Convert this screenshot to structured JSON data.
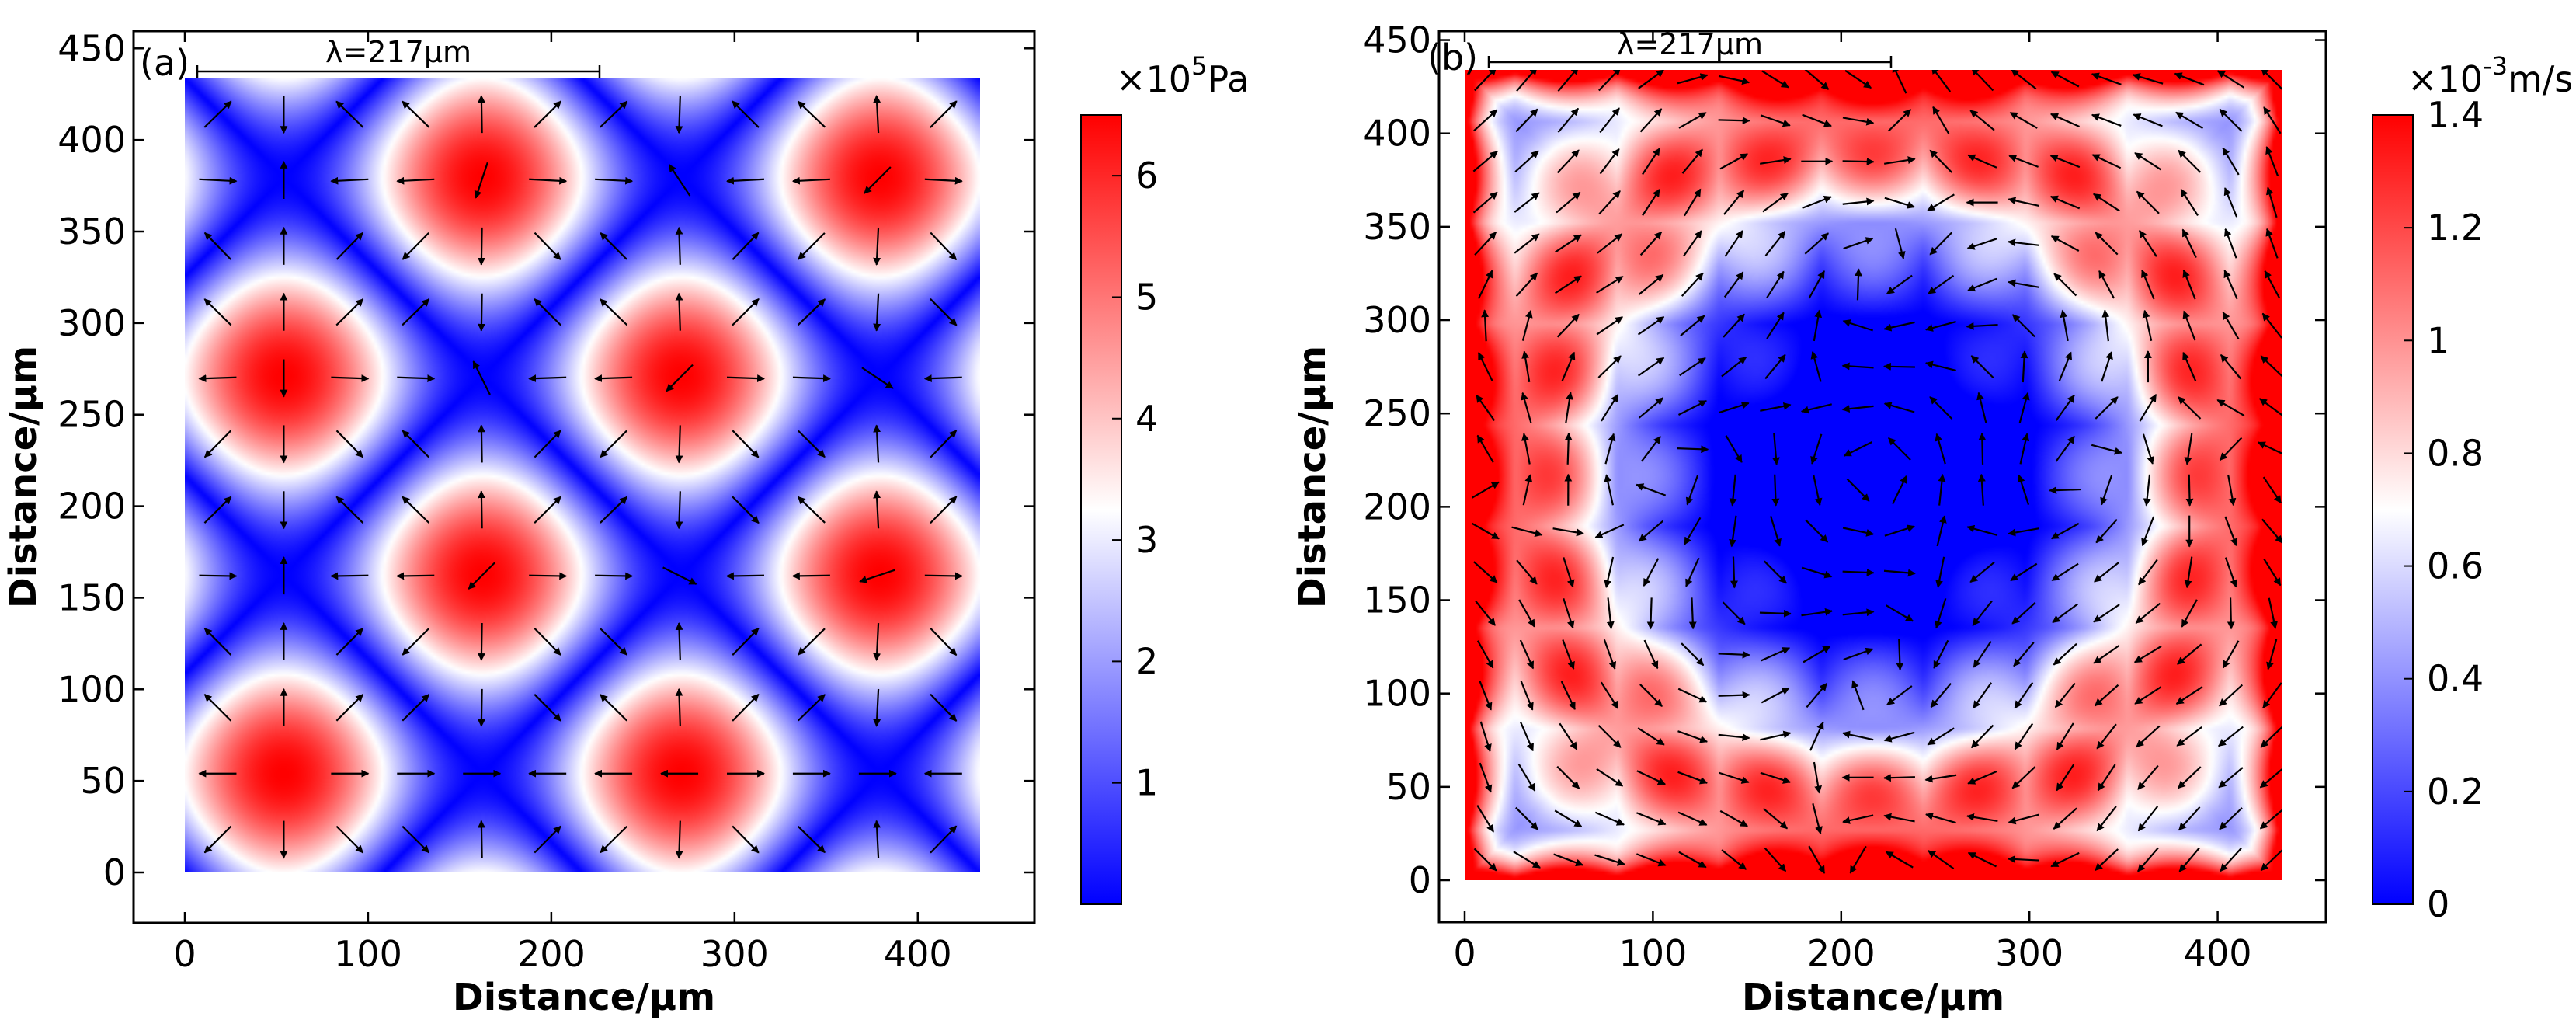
{
  "chart_data": [
    {
      "type": "heatmap",
      "panel_label": "(a)",
      "quantity": "acoustic pressure amplitude with radiation-force arrows",
      "scalebar_label": "λ=217μm",
      "xlabel": "Distance/μm",
      "ylabel": "Distance/μm",
      "xlim": [
        -30,
        465
      ],
      "ylim": [
        -25,
        462
      ],
      "xticks": [
        0,
        100,
        200,
        300,
        400
      ],
      "yticks": [
        0,
        50,
        100,
        150,
        200,
        250,
        300,
        350,
        400,
        450
      ],
      "domain": [
        0,
        434
      ],
      "pressure_peaks": [
        [
          54,
          54
        ],
        [
          271,
          54
        ],
        [
          163,
          163
        ],
        [
          380,
          163
        ],
        [
          54,
          271
        ],
        [
          271,
          271
        ],
        [
          163,
          380
        ],
        [
          380,
          380
        ]
      ],
      "colorbar": {
        "exponent_label": "×10",
        "exponent": "5",
        "unit": "Pa",
        "range": [
          0,
          6.5
        ],
        "ticks": [
          "1",
          "2",
          "3",
          "4",
          "5",
          "6"
        ],
        "tick_values": [
          1,
          2,
          3,
          4,
          5,
          6
        ],
        "colors": [
          "#0000ff",
          "#ffffff",
          "#ff0000"
        ]
      }
    },
    {
      "type": "heatmap",
      "panel_label": "(b)",
      "quantity": "acoustic streaming velocity magnitude with velocity arrows",
      "scalebar_label": "λ=217μm",
      "xlabel": "Distance/μm",
      "ylabel": "Distance/μm",
      "xlim": [
        -15,
        445
      ],
      "ylim": [
        -10,
        455
      ],
      "xticks": [
        0,
        100,
        200,
        300,
        400
      ],
      "yticks": [
        0,
        50,
        100,
        150,
        200,
        250,
        300,
        350,
        400,
        450
      ],
      "domain": [
        0,
        434
      ],
      "colorbar": {
        "exponent_label": "×10",
        "exponent": "-3",
        "unit": "m/s",
        "range": [
          0,
          1.4
        ],
        "ticks": [
          "0",
          "0.2",
          "0.4",
          "0.6",
          "0.8",
          "1",
          "1.2",
          "1.4"
        ],
        "tick_values": [
          0,
          0.2,
          0.4,
          0.6,
          0.8,
          1.0,
          1.2,
          1.4
        ],
        "colors": [
          "#0000ff",
          "#ffffff",
          "#ff0000"
        ]
      }
    }
  ]
}
